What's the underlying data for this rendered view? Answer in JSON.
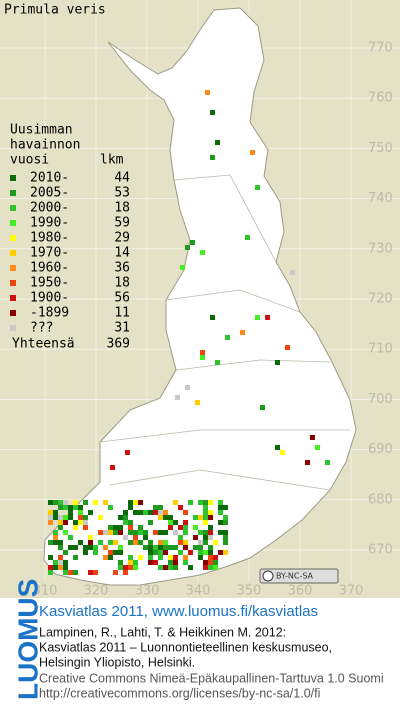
{
  "title": "Primula veris",
  "legend": {
    "header": [
      "Uusimman",
      "havainnon"
    ],
    "col_year": "vuosi",
    "col_count": "lkm",
    "items": [
      {
        "label": "2010-",
        "count": 44,
        "color": "#0b6b0b"
      },
      {
        "label": "2005-",
        "count": 53,
        "color": "#1e9a1e"
      },
      {
        "label": "2000-",
        "count": 18,
        "color": "#2fc42f"
      },
      {
        "label": "1990-",
        "count": 59,
        "color": "#44ee22"
      },
      {
        "label": "1980-",
        "count": 29,
        "color": "#ffff00"
      },
      {
        "label": "1970-",
        "count": 14,
        "color": "#ffcc00"
      },
      {
        "label": "1960-",
        "count": 36,
        "color": "#ff8c1a"
      },
      {
        "label": "1950-",
        "count": 18,
        "color": "#ee4411"
      },
      {
        "label": "1900-",
        "count": 56,
        "color": "#cc1111"
      },
      {
        "label": "-1899",
        "count": 11,
        "color": "#880000"
      },
      {
        "label": "???",
        "count": 31,
        "color": "#c8c8c8"
      }
    ],
    "total_label": "Yhteensä",
    "total": 369
  },
  "grid": {
    "x_labels": [
      310,
      320,
      330,
      340,
      350,
      360,
      370
    ],
    "y_labels": [
      770,
      760,
      750,
      740,
      730,
      720,
      710,
      700,
      690,
      680,
      670
    ]
  },
  "badge": "BY-NC-SA",
  "footer": {
    "brand": "LUOMUS",
    "headline": "Kasviatlas 2011, www.luomus.fi/kasviatlas",
    "citation": [
      "Lampinen, R., Lahti, T. & Heikkinen M. 2012:",
      "Kasviatlas 2011 – Luonnontieteellinen keskusmuseo,",
      "Helsingin Yliopisto, Helsinki."
    ],
    "license": [
      "Creative Commons Nimeä-Epäkaupallinen-Tarttuva 1.0 Suomi",
      "http://creativecommons.org/licenses/by-nc-sa/1.0/fi"
    ]
  }
}
